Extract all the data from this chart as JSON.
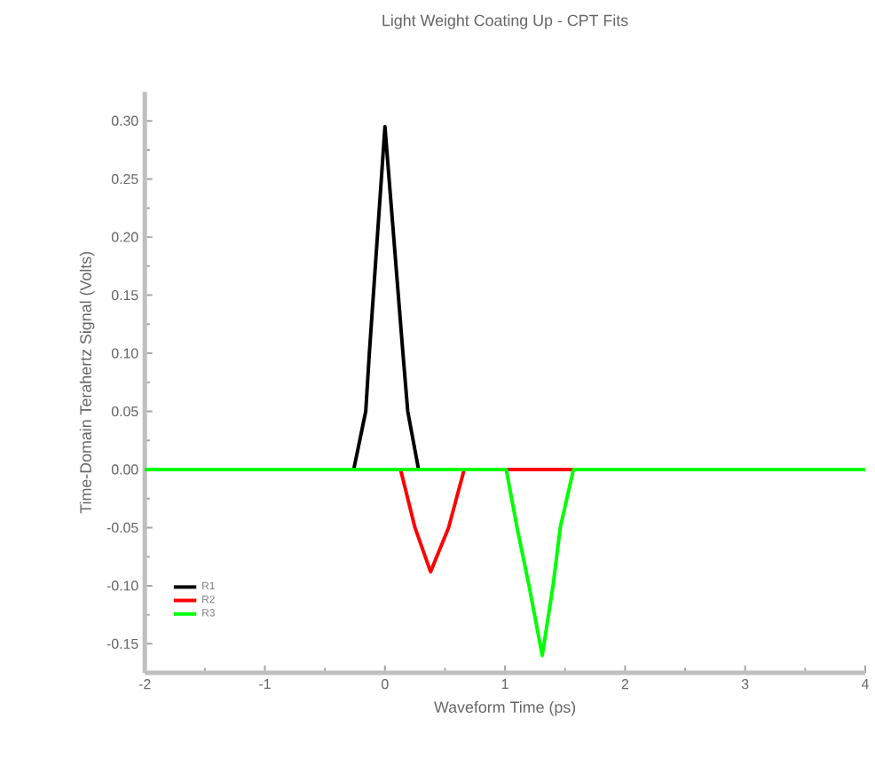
{
  "chart_data": {
    "type": "line",
    "title": "Light Weight Coating Up - CPT Fits",
    "xlabel": "Waveform Time (ps)",
    "ylabel": "Time-Domain Terahertz Signal (Volts)",
    "xlim": [
      -2,
      4
    ],
    "xticks": [
      -2,
      -1,
      0,
      1,
      2,
      3,
      4
    ],
    "ylim": [
      -0.175,
      0.325
    ],
    "yticks": [
      {
        "value": -0.15,
        "label": "-0.15"
      },
      {
        "value": -0.1,
        "label": "-0.10"
      },
      {
        "value": -0.05,
        "label": "-0.05"
      },
      {
        "value": 0,
        "label": "0.00"
      },
      {
        "value": 0.05,
        "label": "0.05"
      },
      {
        "value": 0.1,
        "label": "0.10"
      },
      {
        "value": 0.15,
        "label": "0.15"
      },
      {
        "value": 0.2,
        "label": "0.20"
      },
      {
        "value": 0.25,
        "label": "0.25"
      },
      {
        "value": 0.3,
        "label": "0.30"
      }
    ],
    "legend": "bottom left",
    "grid": false,
    "marker": "none",
    "line_style": "solid",
    "series": [
      {
        "name": "R1",
        "color": "#000000",
        "x": [
          -2,
          -0.26,
          -0.16,
          -0.13,
          0,
          0.15,
          0.19,
          0.28,
          4
        ],
        "values": [
          0,
          0,
          0.05,
          0.1,
          0.295,
          0.1,
          0.05,
          0,
          0
        ]
      },
      {
        "name": "R2",
        "color": "#ff0000",
        "x": [
          0.13,
          0.25,
          0.38,
          0.53,
          0.66,
          1.01,
          1.57
        ],
        "values": [
          0,
          -0.05,
          -0.088,
          -0.05,
          0,
          0,
          0
        ]
      },
      {
        "name": "R3",
        "color": "#00ff00",
        "x": [
          -2,
          1.01,
          1.1,
          1.2,
          1.31,
          1.4,
          1.46,
          1.57,
          4
        ],
        "values": [
          0,
          0,
          -0.05,
          -0.1,
          -0.16,
          -0.1,
          -0.05,
          0,
          0
        ]
      }
    ]
  }
}
